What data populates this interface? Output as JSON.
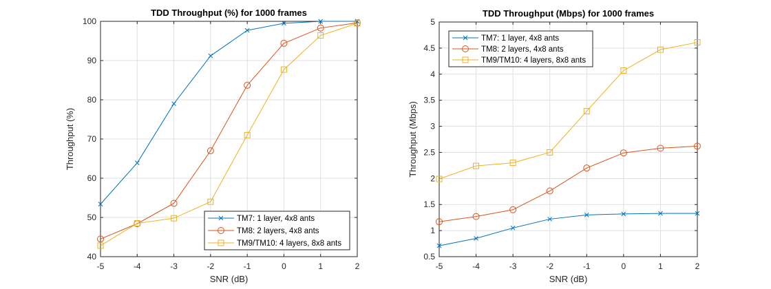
{
  "chart_data": [
    {
      "type": "line",
      "title": "TDD Throughput (%) for 1000 frames",
      "xlabel": "SNR (dB)",
      "ylabel": "Throughput (%)",
      "xlim": [
        -5,
        2
      ],
      "ylim": [
        40,
        100
      ],
      "x": [
        -5,
        -4,
        -3,
        -2,
        -1,
        0,
        1,
        2
      ],
      "xticks": [
        "-5",
        "-4",
        "-3",
        "-2",
        "-1",
        "0",
        "1",
        "2"
      ],
      "yticks": [
        "40",
        "50",
        "60",
        "70",
        "80",
        "90",
        "100"
      ],
      "grid": true,
      "legend_position": "bottom-right",
      "series": [
        {
          "name": "TM7: 1 layer, 4x8 ants",
          "marker": "x",
          "color": "#0072BD",
          "values": [
            53.4,
            63.9,
            79.0,
            91.2,
            97.7,
            99.5,
            100,
            100
          ]
        },
        {
          "name": "TM8: 2 layers, 4x8 ants",
          "marker": "o",
          "color": "#D95319",
          "values": [
            44.5,
            48.4,
            53.6,
            67.0,
            83.7,
            94.4,
            98.3,
            99.6
          ]
        },
        {
          "name": "TM9/TM10: 4 layers, 8x8 ants",
          "marker": "s",
          "color": "#EDB120",
          "values": [
            42.8,
            48.5,
            49.8,
            54.0,
            71.0,
            87.7,
            96.4,
            99.5
          ]
        }
      ]
    },
    {
      "type": "line",
      "title": "TDD Throughput (Mbps) for 1000 frames",
      "xlabel": "SNR (dB)",
      "ylabel": "Throughput (Mbps)",
      "xlim": [
        -5,
        2
      ],
      "ylim": [
        0.5,
        5
      ],
      "x": [
        -5,
        -4,
        -3,
        -2,
        -1,
        0,
        1,
        2
      ],
      "xticks": [
        "-5",
        "-4",
        "-3",
        "-2",
        "-1",
        "0",
        "1",
        "2"
      ],
      "yticks": [
        "0.5",
        "1",
        "1.5",
        "2",
        "2.5",
        "3",
        "3.5",
        "4",
        "4.5",
        "5"
      ],
      "grid": true,
      "legend_position": "top-left",
      "series": [
        {
          "name": "TM7: 1 layer, 4x8 ants",
          "marker": "x",
          "color": "#0072BD",
          "values": [
            0.71,
            0.85,
            1.05,
            1.22,
            1.3,
            1.32,
            1.33,
            1.33
          ]
        },
        {
          "name": "TM8: 2 layers, 4x8 ants",
          "marker": "o",
          "color": "#D95319",
          "values": [
            1.17,
            1.27,
            1.4,
            1.76,
            2.2,
            2.49,
            2.58,
            2.62
          ]
        },
        {
          "name": "TM9/TM10: 4 layers, 8x8 ants",
          "marker": "s",
          "color": "#EDB120",
          "values": [
            1.99,
            2.24,
            2.3,
            2.5,
            3.29,
            4.07,
            4.47,
            4.61
          ]
        }
      ]
    }
  ]
}
